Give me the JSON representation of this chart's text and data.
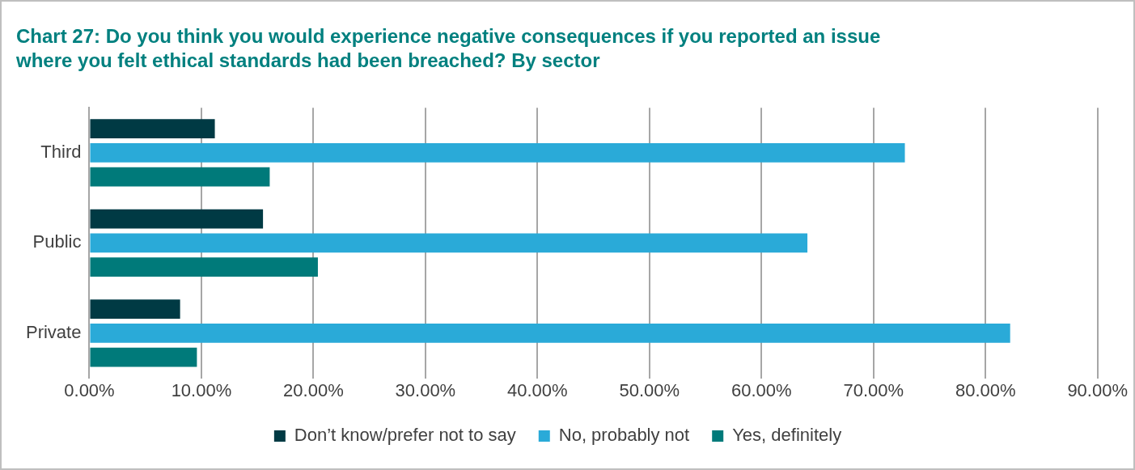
{
  "chart_data": {
    "type": "bar",
    "orientation": "horizontal",
    "title": "Chart 27: Do you think you would experience negative consequences if you reported an issue where you felt ethical standards had been breached? By sector",
    "categories": [
      "Third",
      "Public",
      "Private"
    ],
    "series": [
      {
        "name": "Don’t know/prefer not to say",
        "color": "#003a44",
        "values": [
          11.2,
          15.5,
          8.1
        ]
      },
      {
        "name": "No, probably not",
        "color": "#2aaad8",
        "values": [
          72.8,
          64.1,
          82.2
        ]
      },
      {
        "name": "Yes, definitely",
        "color": "#007a7a",
        "values": [
          16.1,
          20.4,
          9.6
        ]
      }
    ],
    "xlim": [
      0,
      90
    ],
    "xticks": [
      {
        "value": 0,
        "label": "0.00%"
      },
      {
        "value": 10,
        "label": "10.00%"
      },
      {
        "value": 20,
        "label": "20.00%"
      },
      {
        "value": 30,
        "label": "30.00%"
      },
      {
        "value": 40,
        "label": "40.00%"
      },
      {
        "value": 50,
        "label": "50.00%"
      },
      {
        "value": 60,
        "label": "60.00%"
      },
      {
        "value": 70,
        "label": "70.00%"
      },
      {
        "value": 80,
        "label": "80.00%"
      },
      {
        "value": 90,
        "label": "90.00%"
      }
    ],
    "grid": "x",
    "legend": "bottom"
  }
}
